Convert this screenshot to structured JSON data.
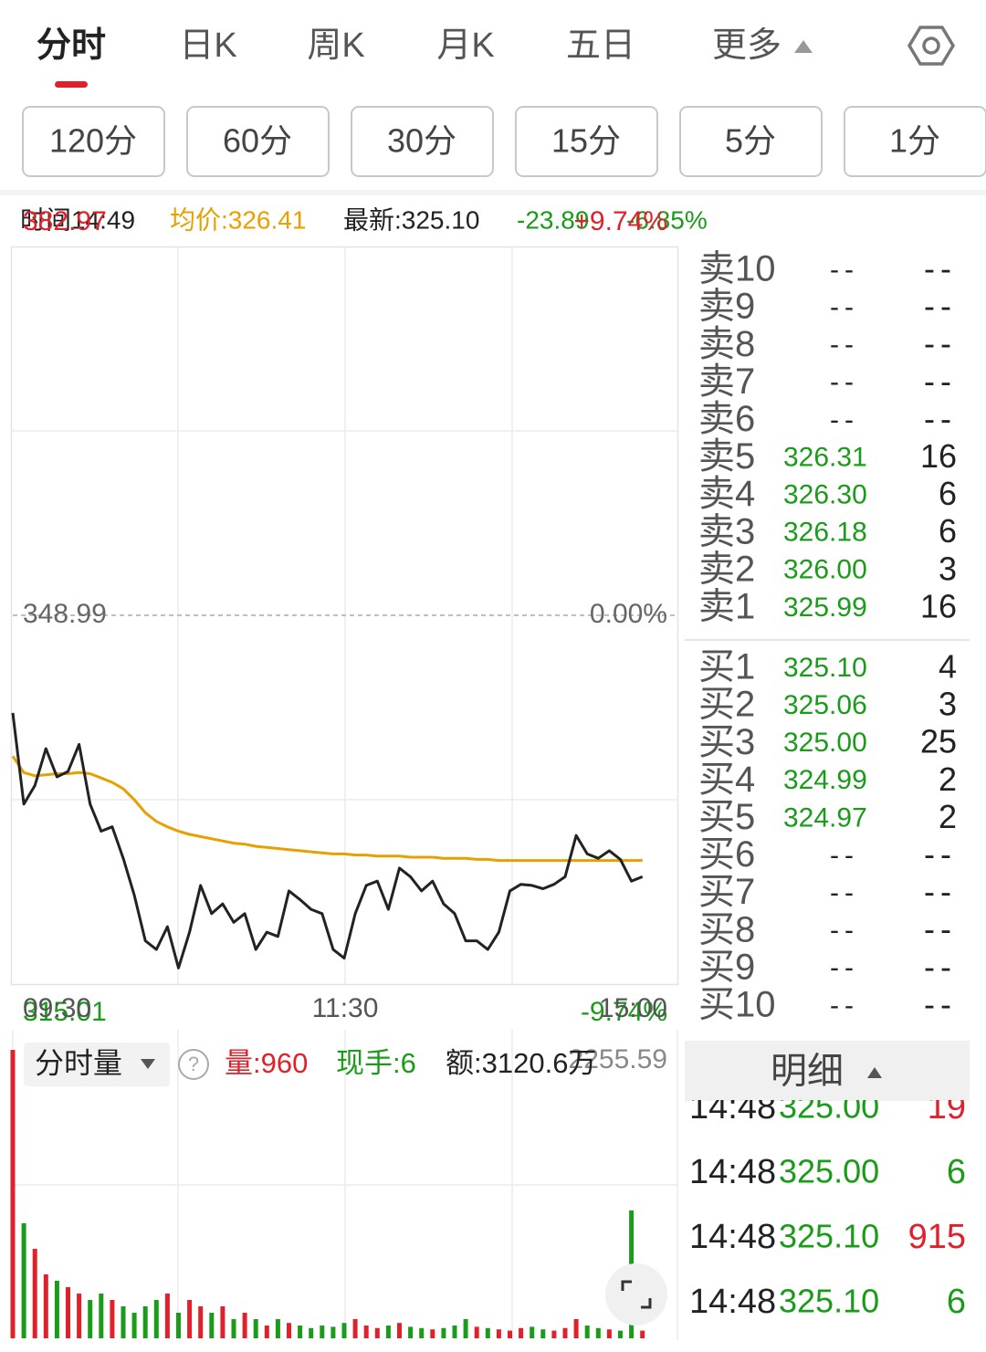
{
  "tabs": [
    "分时",
    "日K",
    "周K",
    "月K",
    "五日",
    "更多"
  ],
  "periods": [
    "120分",
    "60分",
    "30分",
    "15分",
    "5分",
    "1分"
  ],
  "info": {
    "time": "时间14:49",
    "avg": "均价:326.41",
    "last": "最新:325.10",
    "change": "-23.89",
    "pct": "-6.85%"
  },
  "chart_data": [
    {
      "type": "line",
      "series": [
        {
          "color": "#222222",
          "values": [
            340.0,
            331.6,
            333.3,
            336.7,
            334.1,
            334.6,
            337.1,
            331.6,
            329.1,
            329.5,
            326.6,
            323.2,
            319.0,
            318.2,
            320.3,
            316.5,
            319.8,
            324.1,
            321.5,
            322.4,
            320.7,
            321.5,
            318.2,
            319.8,
            319.4,
            323.6,
            322.8,
            321.9,
            321.5,
            318.2,
            317.4,
            321.5,
            324.1,
            324.5,
            321.9,
            325.7,
            324.9,
            323.6,
            324.5,
            322.4,
            321.5,
            319.0,
            319.0,
            318.2,
            319.8,
            323.6,
            324.2,
            324.1,
            323.8,
            324.2,
            324.9,
            328.7,
            327.0,
            326.6,
            327.3,
            326.5,
            324.5,
            324.9
          ]
        },
        {
          "color": "#e8a000",
          "values": [
            336.0,
            334.5,
            334.2,
            334.3,
            334.4,
            334.4,
            334.5,
            334.4,
            334.0,
            333.6,
            333.0,
            332.0,
            330.8,
            330.0,
            329.5,
            329.1,
            328.8,
            328.6,
            328.4,
            328.2,
            328.0,
            327.9,
            327.7,
            327.6,
            327.5,
            327.4,
            327.3,
            327.2,
            327.1,
            327.0,
            327.0,
            326.9,
            326.9,
            326.8,
            326.8,
            326.8,
            326.7,
            326.7,
            326.7,
            326.6,
            326.6,
            326.6,
            326.5,
            326.5,
            326.4,
            326.4,
            326.4,
            326.4,
            326.4,
            326.4,
            326.4,
            326.4,
            326.4,
            326.4,
            326.4,
            326.4,
            326.4,
            326.41
          ]
        }
      ],
      "xticks": [
        "09:30",
        "11:30",
        "15:00"
      ],
      "ylim": [
        315.01,
        382.97
      ],
      "yticks": [
        315.01,
        348.99,
        382.97
      ],
      "y2lim": [
        -9.74,
        9.74
      ],
      "y2ticks": [
        {
          "value": -9.74,
          "label": "-9.74%"
        },
        {
          "value": 0,
          "label": "0.00%"
        },
        {
          "value": 9.74,
          "label": "+9.74%"
        }
      ]
    },
    {
      "type": "bar",
      "title": "分时量",
      "info": {
        "volume": "量:960",
        "hand": "现手:6",
        "amount": "额:3120.6万"
      },
      "values": [
        2255,
        900,
        700,
        500,
        450,
        400,
        350,
        300,
        350,
        300,
        250,
        200,
        250,
        300,
        350,
        200,
        300,
        250,
        200,
        250,
        150,
        200,
        150,
        100,
        150,
        120,
        100,
        80,
        100,
        90,
        120,
        150,
        100,
        80,
        100,
        120,
        90,
        80,
        70,
        80,
        100,
        150,
        90,
        80,
        70,
        60,
        80,
        90,
        70,
        60,
        80,
        150,
        100,
        80,
        70,
        60,
        1000,
        60
      ],
      "ylim": [
        0,
        2255.59
      ],
      "yticks": [
        2255.59
      ]
    }
  ],
  "order_book": {
    "asks": [
      [
        "卖10",
        "--",
        "--"
      ],
      [
        "卖9",
        "--",
        "--"
      ],
      [
        "卖8",
        "--",
        "--"
      ],
      [
        "卖7",
        "--",
        "--"
      ],
      [
        "卖6",
        "--",
        "--"
      ],
      [
        "卖5",
        "326.31",
        "16"
      ],
      [
        "卖4",
        "326.30",
        "6"
      ],
      [
        "卖3",
        "326.18",
        "6"
      ],
      [
        "卖2",
        "326.00",
        "3"
      ],
      [
        "卖1",
        "325.99",
        "16"
      ]
    ],
    "bids": [
      [
        "买1",
        "325.10",
        "4"
      ],
      [
        "买2",
        "325.06",
        "3"
      ],
      [
        "买3",
        "325.00",
        "25"
      ],
      [
        "买4",
        "324.99",
        "2"
      ],
      [
        "买5",
        "324.97",
        "2"
      ],
      [
        "买6",
        "--",
        "--"
      ],
      [
        "买7",
        "--",
        "--"
      ],
      [
        "买8",
        "--",
        "--"
      ],
      [
        "买9",
        "--",
        "--"
      ],
      [
        "买10",
        "--",
        "--"
      ]
    ]
  },
  "detail": {
    "title": "明细",
    "trades": [
      {
        "time": "14:48",
        "price": "325.00",
        "volume": "19",
        "color": "#e0202a"
      },
      {
        "time": "14:48",
        "price": "325.00",
        "volume": "6",
        "color": "#1a9c1a"
      },
      {
        "time": "14:48",
        "price": "325.10",
        "volume": "915",
        "color": "#e0202a"
      },
      {
        "time": "14:48",
        "price": "325.10",
        "volume": "6",
        "color": "#1a9c1a"
      }
    ]
  }
}
